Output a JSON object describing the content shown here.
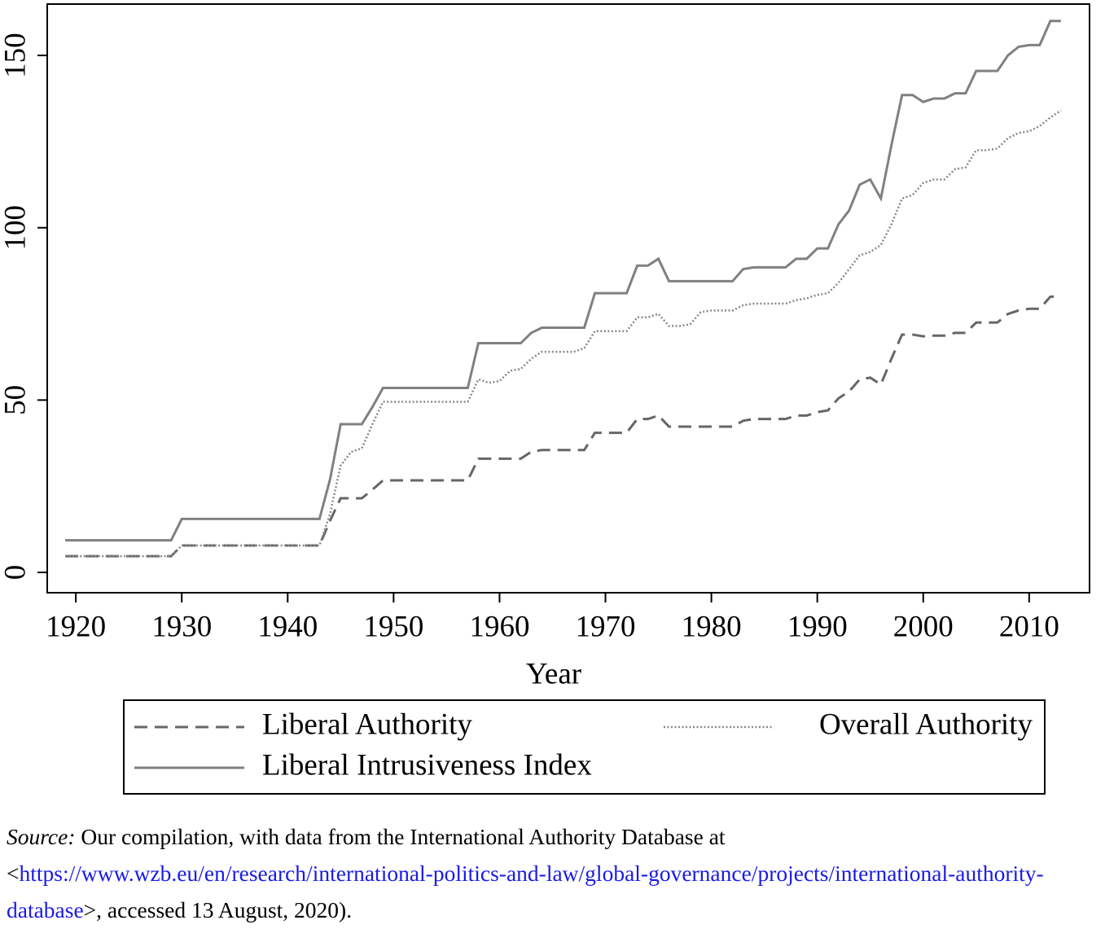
{
  "chart_data": {
    "type": "line",
    "x_label": "Year",
    "x": [
      1919,
      1920,
      1921,
      1922,
      1923,
      1924,
      1925,
      1926,
      1927,
      1928,
      1929,
      1930,
      1931,
      1932,
      1933,
      1934,
      1935,
      1936,
      1937,
      1938,
      1939,
      1940,
      1941,
      1942,
      1943,
      1944,
      1945,
      1946,
      1947,
      1948,
      1949,
      1950,
      1951,
      1952,
      1953,
      1954,
      1955,
      1956,
      1957,
      1958,
      1959,
      1960,
      1961,
      1962,
      1963,
      1964,
      1965,
      1966,
      1967,
      1968,
      1969,
      1970,
      1971,
      1972,
      1973,
      1974,
      1975,
      1976,
      1977,
      1978,
      1979,
      1980,
      1981,
      1982,
      1983,
      1984,
      1985,
      1986,
      1987,
      1988,
      1989,
      1990,
      1991,
      1992,
      1993,
      1994,
      1995,
      1996,
      1997,
      1998,
      1999,
      2000,
      2001,
      2002,
      2003,
      2004,
      2005,
      2006,
      2007,
      2008,
      2009,
      2010,
      2011,
      2012,
      2013
    ],
    "series": [
      {
        "name": "Liberal Authority",
        "color": "#666666",
        "style": "dashed",
        "values": [
          4.7,
          4.7,
          4.7,
          4.7,
          4.7,
          4.7,
          4.7,
          4.7,
          4.7,
          4.7,
          4.7,
          7.8,
          7.8,
          7.8,
          7.8,
          7.8,
          7.8,
          7.8,
          7.8,
          7.8,
          7.8,
          7.8,
          7.8,
          7.8,
          7.8,
          15,
          21.5,
          21.5,
          21.5,
          24,
          26.7,
          26.7,
          26.7,
          26.7,
          26.7,
          26.7,
          26.7,
          26.7,
          26.7,
          33,
          33,
          33,
          33,
          33,
          35,
          35.5,
          35.5,
          35.5,
          35.5,
          35.5,
          40.5,
          40.5,
          40.5,
          40.5,
          44.5,
          44.5,
          45.5,
          42.3,
          42.3,
          42.3,
          42.3,
          42.3,
          42.3,
          42.3,
          44,
          44.5,
          44.5,
          44.5,
          44.5,
          45.5,
          45.5,
          46.5,
          47,
          50.5,
          52.5,
          56,
          56.5,
          54.5,
          62,
          69,
          69,
          68.5,
          68.7,
          68.7,
          69.5,
          69.5,
          72.5,
          72.5,
          72.5,
          75,
          76,
          76.5,
          76.5,
          80,
          80
        ]
      },
      {
        "name": "Liberal Intrusiveness Index",
        "color": "#808080",
        "style": "solid",
        "values": [
          9.3,
          9.3,
          9.3,
          9.3,
          9.3,
          9.3,
          9.3,
          9.3,
          9.3,
          9.3,
          9.3,
          15.5,
          15.5,
          15.5,
          15.5,
          15.5,
          15.5,
          15.5,
          15.5,
          15.5,
          15.5,
          15.5,
          15.5,
          15.5,
          15.5,
          27,
          43,
          43,
          43,
          48,
          53.5,
          53.5,
          53.5,
          53.5,
          53.5,
          53.5,
          53.5,
          53.5,
          53.5,
          66.5,
          66.5,
          66.5,
          66.5,
          66.5,
          69.5,
          71,
          71,
          71,
          71,
          71,
          81,
          81,
          81,
          81,
          89,
          89,
          91,
          84.5,
          84.5,
          84.5,
          84.5,
          84.5,
          84.5,
          84.5,
          88,
          88.5,
          88.5,
          88.5,
          88.5,
          91,
          91,
          94,
          94,
          101,
          105,
          112.5,
          114,
          108.5,
          124,
          138.5,
          138.5,
          136.5,
          137.5,
          137.5,
          139,
          139,
          145.5,
          145.5,
          145.5,
          150,
          152.5,
          153,
          153,
          160,
          160
        ]
      },
      {
        "name": "Overall Authority",
        "color": "#888888",
        "style": "dotted",
        "values": [
          4.7,
          4.7,
          4.7,
          4.7,
          4.7,
          4.7,
          4.7,
          4.7,
          4.7,
          4.7,
          4.7,
          7.8,
          7.8,
          7.8,
          7.8,
          7.8,
          7.8,
          7.8,
          7.8,
          7.8,
          7.8,
          7.8,
          7.8,
          7.8,
          7.8,
          17,
          31,
          35,
          36,
          43,
          49.5,
          49.5,
          49.5,
          49.5,
          49.5,
          49.5,
          49.5,
          49.5,
          49.5,
          56,
          55,
          55.5,
          58.5,
          59,
          62,
          64,
          64,
          64,
          64,
          65,
          70,
          70,
          70,
          70,
          74,
          74,
          75,
          71.5,
          71.5,
          72,
          75.5,
          76,
          76,
          76,
          77.5,
          78,
          78,
          78,
          78,
          79,
          79.5,
          80.5,
          81,
          84,
          88,
          92,
          93,
          95,
          101,
          108.5,
          109.5,
          113,
          114,
          114,
          117,
          117.5,
          122.5,
          122.5,
          123,
          126,
          127.5,
          128,
          129.5,
          132,
          134
        ]
      }
    ],
    "xlim": [
      1917.3,
      2015.7
    ],
    "xticks": [
      1920,
      1930,
      1940,
      1950,
      1960,
      1970,
      1980,
      1990,
      2000,
      2010
    ],
    "ylim": [
      -5.9,
      164.9
    ],
    "yticks": [
      0,
      50,
      100,
      150
    ],
    "grid": false,
    "legend": "bottom"
  },
  "caption": {
    "source_label": "Source:",
    "text": " Our compilation, with data from the International Authority Database at <",
    "link": "https://www.wzb.eu/en/research/international-politics-and-law/global-governance/projects/international-authority-database",
    "end": ">, accessed 13 August, 2020)."
  }
}
